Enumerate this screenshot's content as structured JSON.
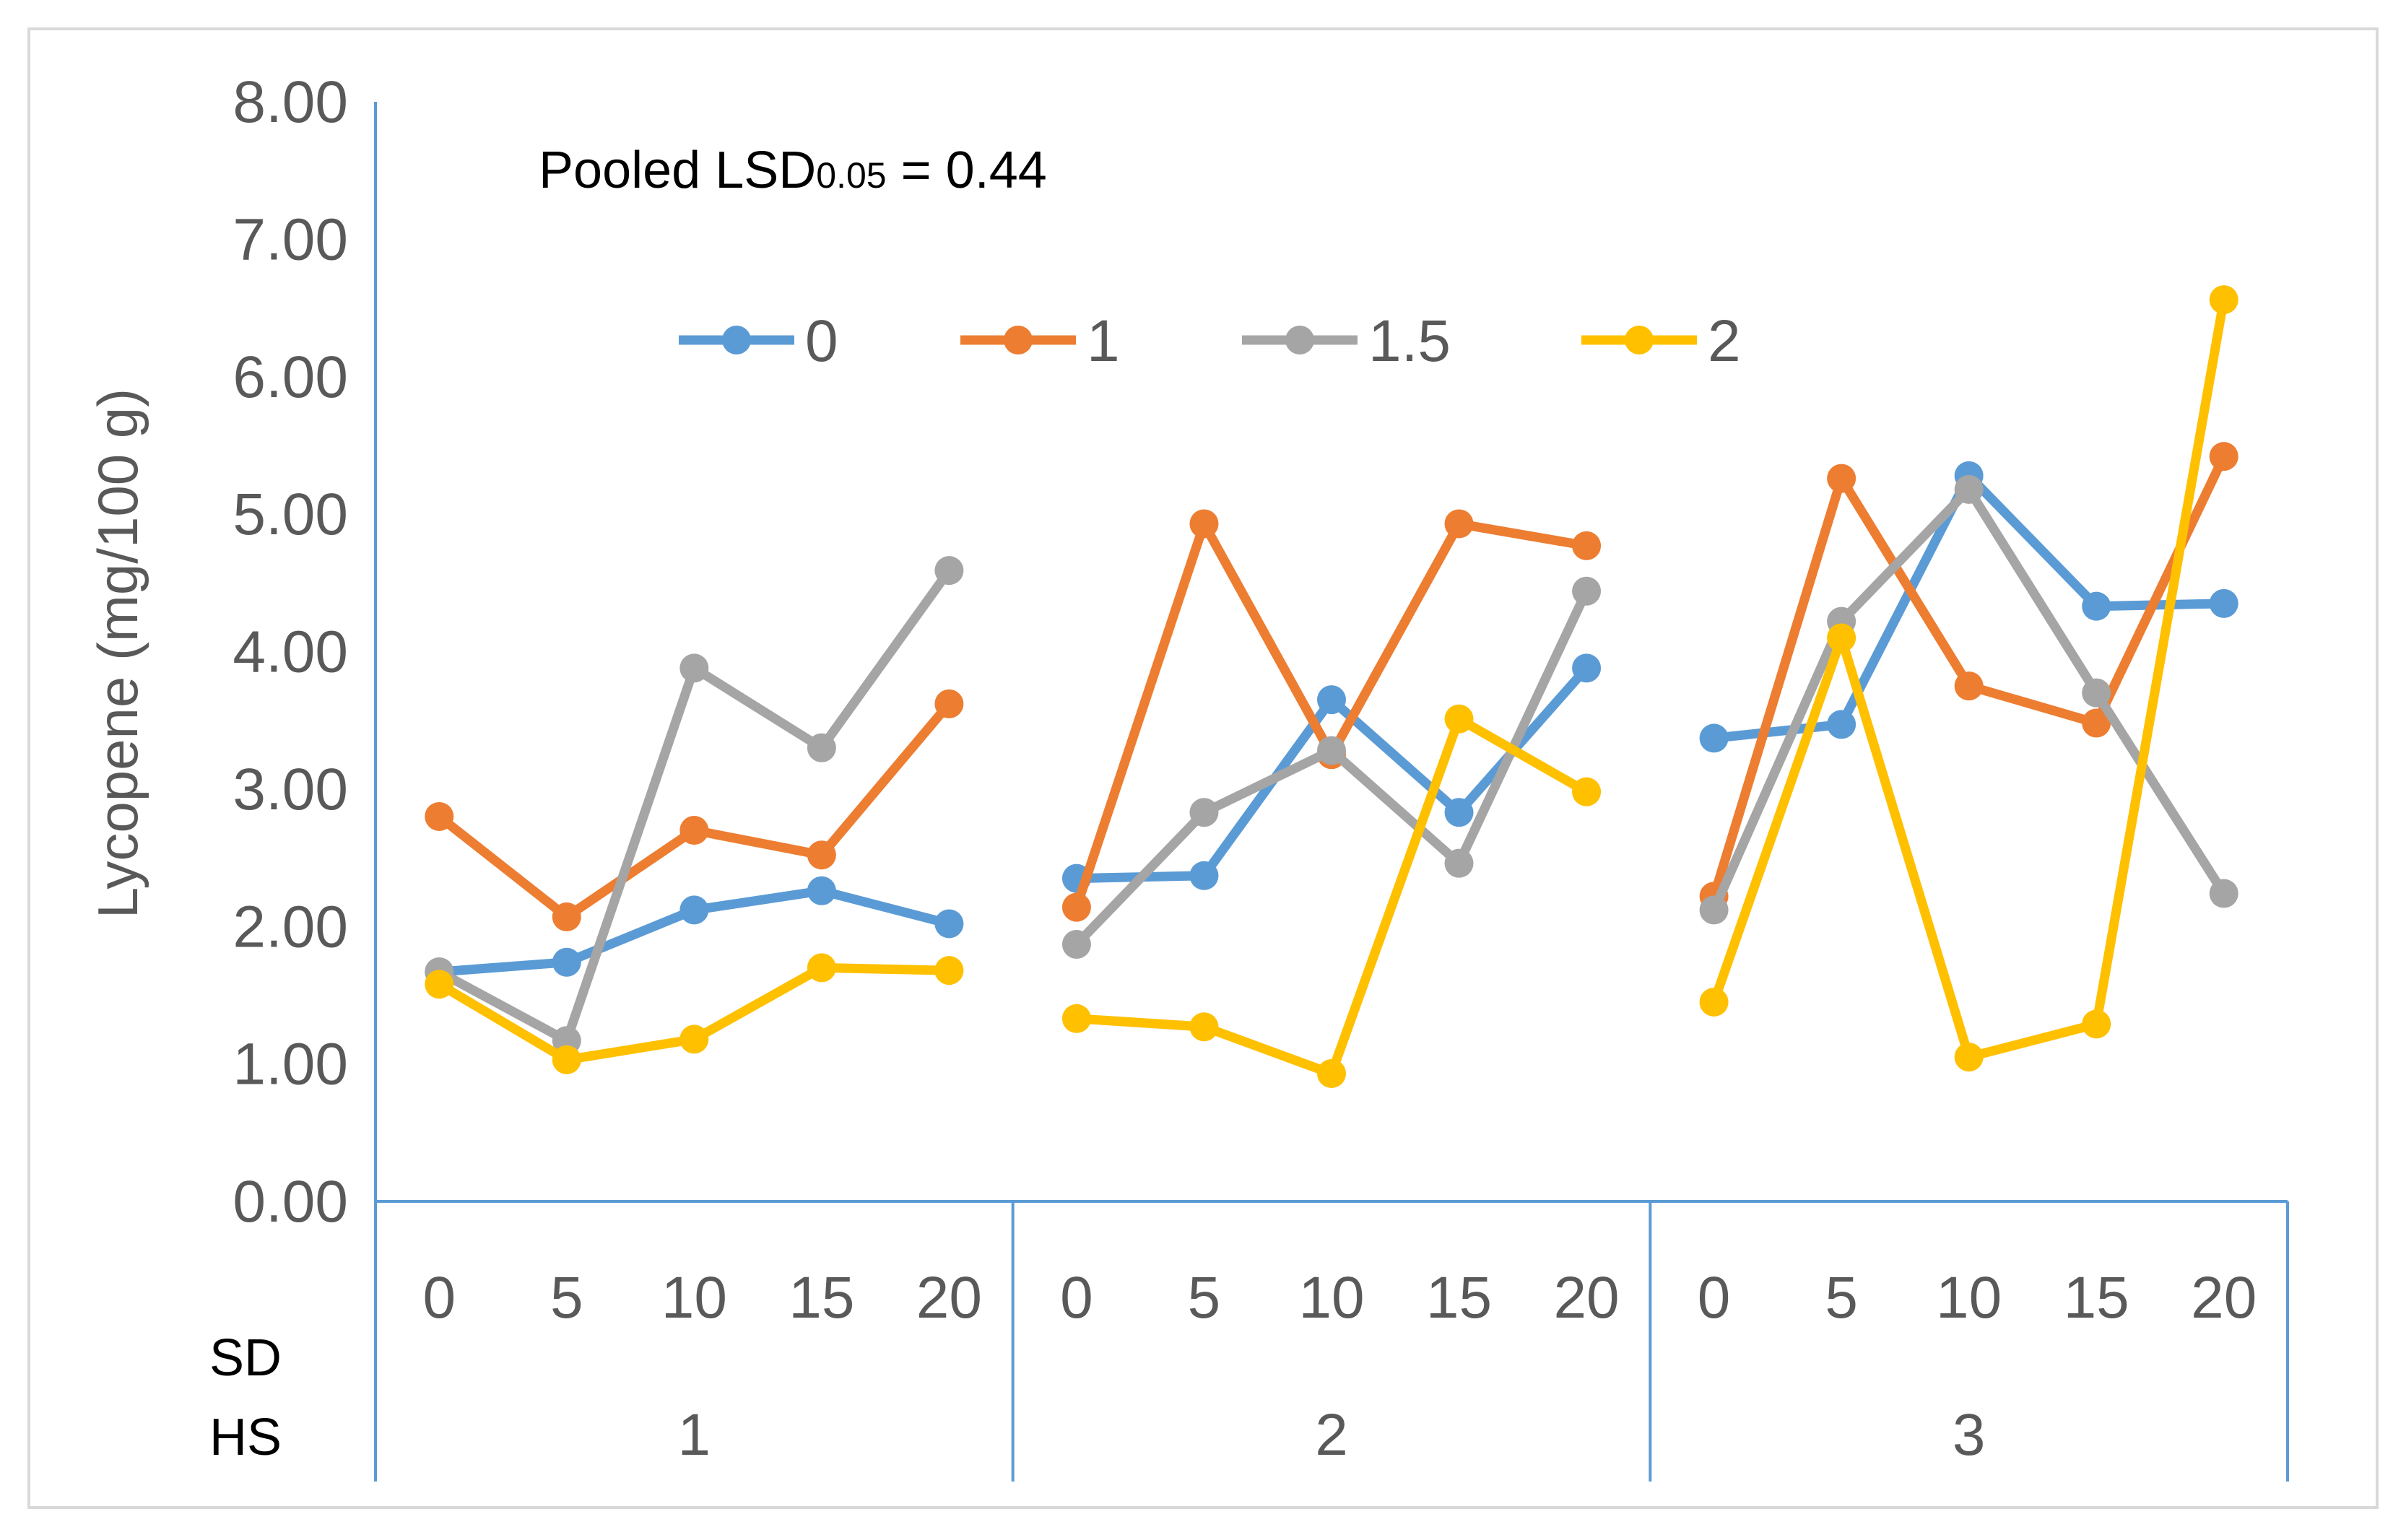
{
  "chart_data": {
    "type": "line",
    "title": "",
    "annotation": {
      "prefix": "Pooled LSD",
      "subscript": "0.05",
      "suffix": " = 0.44"
    },
    "ylabel": "Lycopene (mg/100 g)",
    "ylim": [
      0,
      8
    ],
    "y_ticks": [
      "0.00",
      "1.00",
      "2.00",
      "3.00",
      "4.00",
      "5.00",
      "6.00",
      "7.00",
      "8.00"
    ],
    "grid": false,
    "legend_position": "top",
    "x_level_names": [
      "SD",
      "HS"
    ],
    "groups": [
      {
        "label": "1",
        "categories": [
          "0",
          "5",
          "10",
          "15",
          "20"
        ]
      },
      {
        "label": "2",
        "categories": [
          "0",
          "5",
          "10",
          "15",
          "20"
        ]
      },
      {
        "label": "3",
        "categories": [
          "0",
          "5",
          "10",
          "15",
          "20"
        ]
      }
    ],
    "series": [
      {
        "name": "0",
        "color": "#5B9BD5",
        "values": [
          [
            1.67,
            1.74,
            2.12,
            2.26,
            2.02
          ],
          [
            2.35,
            2.37,
            3.65,
            2.83,
            3.88
          ],
          [
            3.37,
            3.47,
            5.28,
            4.33,
            4.35
          ]
        ]
      },
      {
        "name": "1",
        "color": "#ED7D31",
        "values": [
          [
            2.8,
            2.07,
            2.7,
            2.52,
            3.62
          ],
          [
            2.14,
            4.93,
            3.25,
            4.93,
            4.77
          ],
          [
            2.22,
            5.26,
            3.75,
            3.48,
            5.42
          ]
        ]
      },
      {
        "name": "1.5",
        "color": "#A5A5A5",
        "values": [
          [
            1.67,
            1.17,
            3.88,
            3.3,
            4.59
          ],
          [
            1.87,
            2.83,
            3.28,
            2.46,
            4.44
          ],
          [
            2.12,
            4.22,
            5.18,
            3.7,
            2.24
          ]
        ]
      },
      {
        "name": "2",
        "color": "#FFC000",
        "values": [
          [
            1.58,
            1.03,
            1.18,
            1.7,
            1.68
          ],
          [
            1.33,
            1.27,
            0.93,
            3.51,
            2.98
          ],
          [
            1.45,
            4.1,
            1.05,
            1.29,
            6.56
          ]
        ]
      }
    ]
  }
}
